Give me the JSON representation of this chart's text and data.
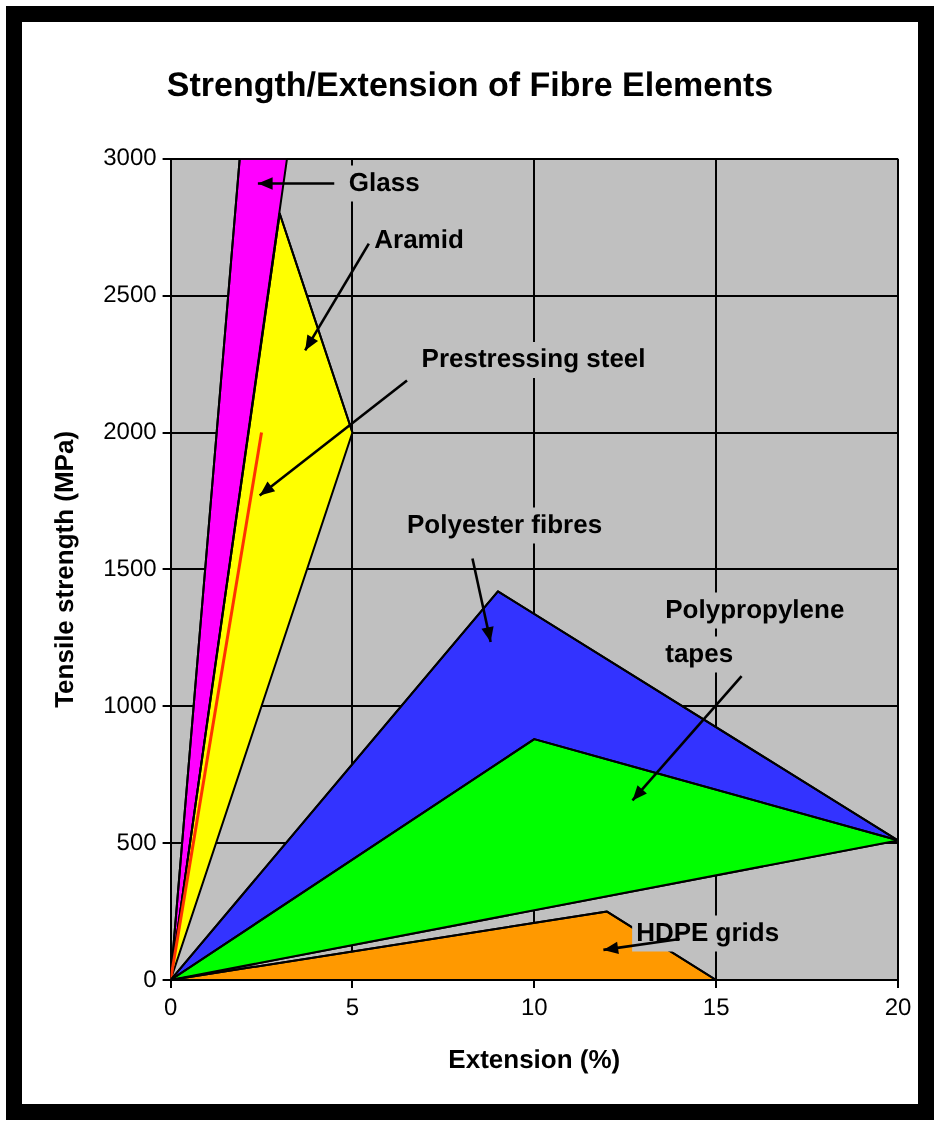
{
  "chart_data": {
    "type": "area",
    "title": "Strength/Extension of Fibre Elements",
    "xlabel": "Extension (%)",
    "ylabel": "Tensile strength (MPa)",
    "xlim": [
      0,
      20
    ],
    "xticks": [
      0,
      5,
      10,
      15,
      20
    ],
    "ylim": [
      0,
      3000
    ],
    "yticks": [
      0,
      500,
      1000,
      1500,
      2000,
      2500,
      3000
    ],
    "grid": true,
    "legend": "top right",
    "series": [
      {
        "name": "Glass",
        "color": "#ff00ff",
        "x": [
          0,
          1.9,
          3.2
        ],
        "values": [
          0,
          3000,
          3000
        ]
      },
      {
        "name": "Aramid",
        "color": "#ffff00",
        "x": [
          0,
          3,
          5
        ],
        "values": [
          0,
          2800,
          2000
        ]
      },
      {
        "name": "Prestressing steel",
        "type": "line",
        "color": "#ff3300",
        "x": [
          0,
          2.5
        ],
        "values": [
          0,
          2000
        ]
      },
      {
        "name": "Polyester fibres",
        "color": "#3333ff",
        "x": [
          0,
          9,
          20
        ],
        "values": [
          0,
          1420,
          510
        ]
      },
      {
        "name": "Polypropylene tapes",
        "color": "#00ff00",
        "x": [
          0,
          10,
          20
        ],
        "values": [
          0,
          880,
          510
        ]
      },
      {
        "name": "HDPE grids",
        "color": "#ff9900",
        "x": [
          0,
          12,
          15
        ],
        "values": [
          0,
          250,
          0
        ]
      }
    ]
  }
}
